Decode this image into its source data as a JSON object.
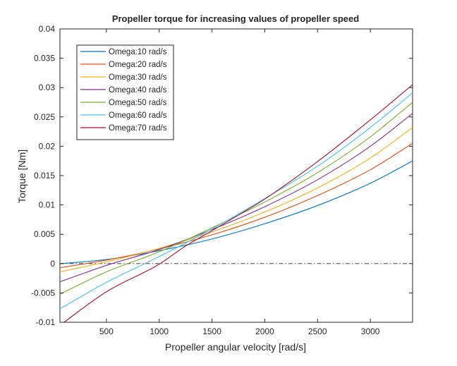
{
  "chart_data": {
    "type": "line",
    "title": "Propeller torque for increasing values of propeller speed",
    "xlabel": "Propeller angular velocity [rad/s]",
    "ylabel": "Torque [Nm]",
    "xlim": [
      60,
      3400
    ],
    "ylim": [
      -0.01,
      0.04
    ],
    "xticks": [
      500,
      1000,
      1500,
      2000,
      2500,
      3000
    ],
    "xtick_labels": [
      "500",
      "1000",
      "1500",
      "2000",
      "2500",
      "3000"
    ],
    "yticks": [
      -0.01,
      -0.005,
      0,
      0.005,
      0.01,
      0.015,
      0.02,
      0.025,
      0.03,
      0.035,
      0.04
    ],
    "ytick_labels": [
      "-0.01",
      "-0.005",
      "0",
      "0.005",
      "0.01",
      "0.015",
      "0.02",
      "0.025",
      "0.03",
      "0.035",
      "0.04"
    ],
    "grid": false,
    "legend_position": "top-left",
    "zero_line": {
      "y": 0,
      "style": "dash-dot",
      "color": "#262626"
    },
    "series": [
      {
        "name": "Omega:10 rad/s",
        "color": "#0072BD",
        "x": [
          60,
          500,
          1000,
          1500,
          2000,
          2500,
          3000,
          3400
        ],
        "y": [
          -3e-05,
          0.0007,
          0.0022,
          0.0042,
          0.0068,
          0.0099,
          0.0137,
          0.0175
        ]
      },
      {
        "name": "Omega:20 rad/s",
        "color": "#D95319",
        "x": [
          60,
          500,
          1000,
          1500,
          2000,
          2500,
          3000,
          3400
        ],
        "y": [
          -0.0007,
          0.0006,
          0.0025,
          0.0049,
          0.0079,
          0.0116,
          0.016,
          0.0205
        ]
      },
      {
        "name": "Omega:30 rad/s",
        "color": "#EDB120",
        "x": [
          60,
          500,
          1000,
          1500,
          2000,
          2500,
          3000,
          3400
        ],
        "y": [
          -0.0014,
          0.0003,
          0.0026,
          0.0054,
          0.0088,
          0.0129,
          0.018,
          0.0232
        ]
      },
      {
        "name": "Omega:40 rad/s",
        "color": "#7E2F8E",
        "x": [
          60,
          500,
          1000,
          1500,
          2000,
          2500,
          3000,
          3400
        ],
        "y": [
          -0.0031,
          -0.0003,
          0.0024,
          0.0058,
          0.0097,
          0.0143,
          0.02,
          0.0256
        ]
      },
      {
        "name": "Omega:50 rad/s",
        "color": "#77AC30",
        "x": [
          60,
          500,
          1000,
          1500,
          2000,
          2500,
          3000,
          3400
        ],
        "y": [
          -0.0052,
          -0.0014,
          0.002,
          0.0061,
          0.0105,
          0.0155,
          0.0216,
          0.0275
        ]
      },
      {
        "name": "Omega:60 rad/s",
        "color": "#4DBEEE",
        "x": [
          60,
          500,
          1000,
          1500,
          2000,
          2500,
          3000,
          3400
        ],
        "y": [
          -0.0077,
          -0.0032,
          0.0012,
          0.0059,
          0.0111,
          0.0166,
          0.0232,
          0.0291
        ]
      },
      {
        "name": "Omega:70 rad/s",
        "color": "#A2142F",
        "x": [
          60,
          500,
          1000,
          1250,
          1500,
          1800,
          2000,
          2500,
          3000,
          3400
        ],
        "y": [
          -0.0105,
          -0.0048,
          -0.0001,
          0.003,
          0.0056,
          0.0088,
          0.011,
          0.0174,
          0.0245,
          0.0305
        ]
      }
    ]
  }
}
